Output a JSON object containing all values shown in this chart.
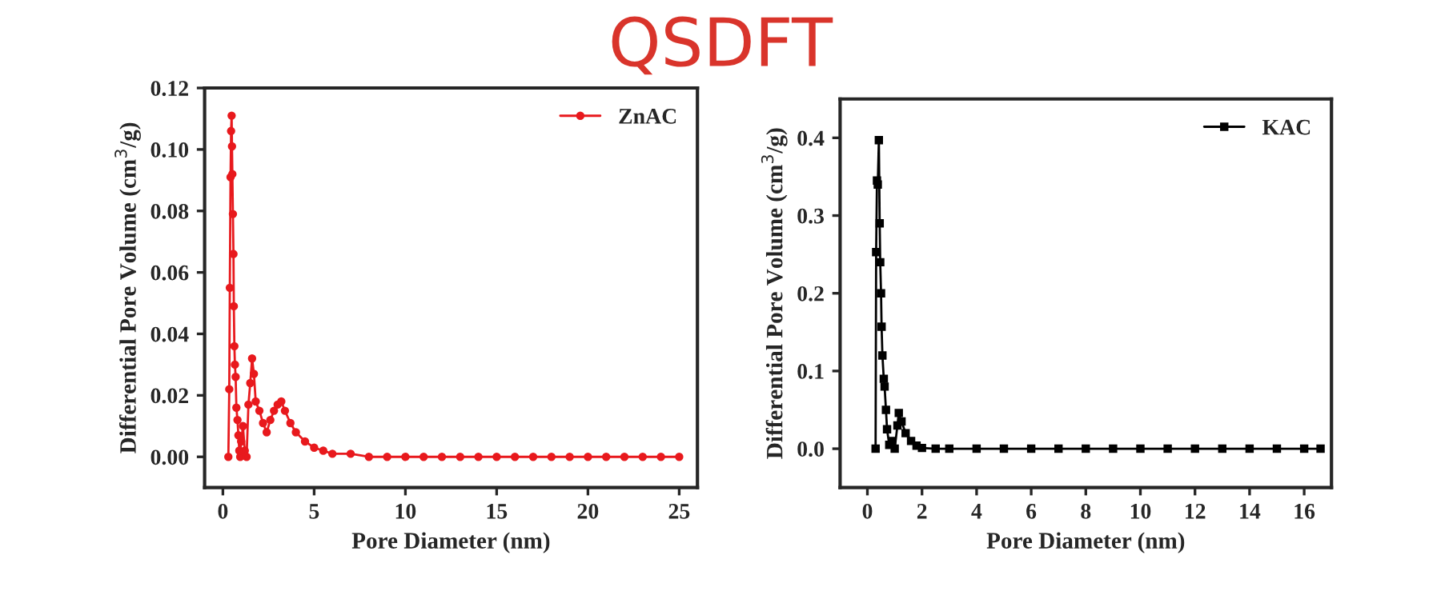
{
  "chart_data": [
    {
      "type": "line",
      "title": "QSDFT",
      "xlabel": "Pore Diameter (nm)",
      "ylabel": "Differential Pore Volume (cm$^{3}$/g)",
      "marker": "circle",
      "line_style": "solid",
      "legend": "top right",
      "grid": false,
      "xlim": [
        -1,
        26
      ],
      "xticks": [
        0,
        5,
        10,
        15,
        20,
        25
      ],
      "ylim": [
        -0.01,
        0.12
      ],
      "yticks": [
        {
          "value": 0,
          "label": "0.00"
        },
        {
          "value": 0.02,
          "label": "0.02"
        },
        {
          "value": 0.04,
          "label": "0.04"
        },
        {
          "value": 0.06,
          "label": "0.06"
        },
        {
          "value": 0.08,
          "label": "0.08"
        },
        {
          "value": 0.1,
          "label": "0.10"
        },
        {
          "value": 0.12,
          "label": "0.12"
        }
      ],
      "series": [
        {
          "name": "ZnAC",
          "color": "#e8191d",
          "x": [
            0.3,
            0.35,
            0.38,
            0.42,
            0.45,
            0.48,
            0.5,
            0.52,
            0.55,
            0.58,
            0.6,
            0.63,
            0.66,
            0.7,
            0.74,
            0.8,
            0.85,
            0.9,
            0.95,
            1.0,
            1.1,
            1.2,
            1.3,
            1.4,
            1.5,
            1.6,
            1.7,
            1.8,
            2.0,
            2.2,
            2.4,
            2.6,
            2.8,
            3.0,
            3.2,
            3.4,
            3.7,
            4.0,
            4.5,
            5.0,
            5.5,
            6.0,
            7.0,
            8.0,
            9.0,
            10.0,
            11.0,
            12.0,
            13.0,
            14.0,
            15.0,
            16.0,
            17.0,
            18.0,
            19.0,
            20.0,
            21.0,
            22.0,
            23.0,
            24.0,
            25.0
          ],
          "values": [
            0.0,
            0.022,
            0.055,
            0.091,
            0.106,
            0.111,
            0.101,
            0.092,
            0.079,
            0.066,
            0.049,
            0.036,
            0.03,
            0.026,
            0.016,
            0.012,
            0.007,
            0.002,
            0.0,
            0.005,
            0.01,
            0.002,
            0.0,
            0.017,
            0.024,
            0.032,
            0.027,
            0.018,
            0.015,
            0.011,
            0.008,
            0.012,
            0.015,
            0.017,
            0.018,
            0.015,
            0.011,
            0.008,
            0.005,
            0.003,
            0.002,
            0.001,
            0.001,
            0.0,
            0.0,
            0.0,
            0.0,
            0.0,
            0.0,
            0.0,
            0.0,
            0.0,
            0.0,
            0.0,
            0.0,
            0.0,
            0.0,
            0.0,
            0.0,
            0.0,
            0.0
          ]
        }
      ]
    },
    {
      "type": "line",
      "xlabel": "Pore Diameter (nm)",
      "ylabel": "Differential Pore Volume (cm$^{3}$/g)",
      "marker": "square",
      "line_style": "solid",
      "legend": "top right",
      "grid": false,
      "xlim": [
        -1,
        17
      ],
      "xticks": [
        0,
        2,
        4,
        6,
        8,
        10,
        12,
        14,
        16
      ],
      "ylim": [
        -0.05,
        0.45
      ],
      "yticks": [
        {
          "value": 0,
          "label": "0.0"
        },
        0.1,
        0.2,
        0.3,
        0.4
      ],
      "series": [
        {
          "name": "KAC",
          "color": "#000000",
          "x": [
            0.3,
            0.32,
            0.35,
            0.38,
            0.42,
            0.45,
            0.47,
            0.5,
            0.52,
            0.55,
            0.6,
            0.63,
            0.68,
            0.72,
            0.8,
            0.9,
            1.0,
            1.1,
            1.15,
            1.25,
            1.4,
            1.6,
            1.8,
            2.0,
            2.5,
            3.0,
            4.0,
            5.0,
            6.0,
            7.0,
            8.0,
            9.0,
            10.0,
            11.0,
            12.0,
            13.0,
            14.0,
            15.0,
            16.0,
            16.6
          ],
          "values": [
            0.0,
            0.253,
            0.345,
            0.34,
            0.397,
            0.29,
            0.24,
            0.2,
            0.157,
            0.12,
            0.09,
            0.08,
            0.05,
            0.025,
            0.005,
            0.01,
            0.0,
            0.03,
            0.046,
            0.035,
            0.02,
            0.01,
            0.004,
            0.001,
            0.0,
            0.0,
            0.0,
            0.0,
            0.0,
            0.0,
            0.0,
            0.0,
            0.0,
            0.0,
            0.0,
            0.0,
            0.0,
            0.0,
            0.0,
            0.0
          ]
        }
      ]
    }
  ]
}
